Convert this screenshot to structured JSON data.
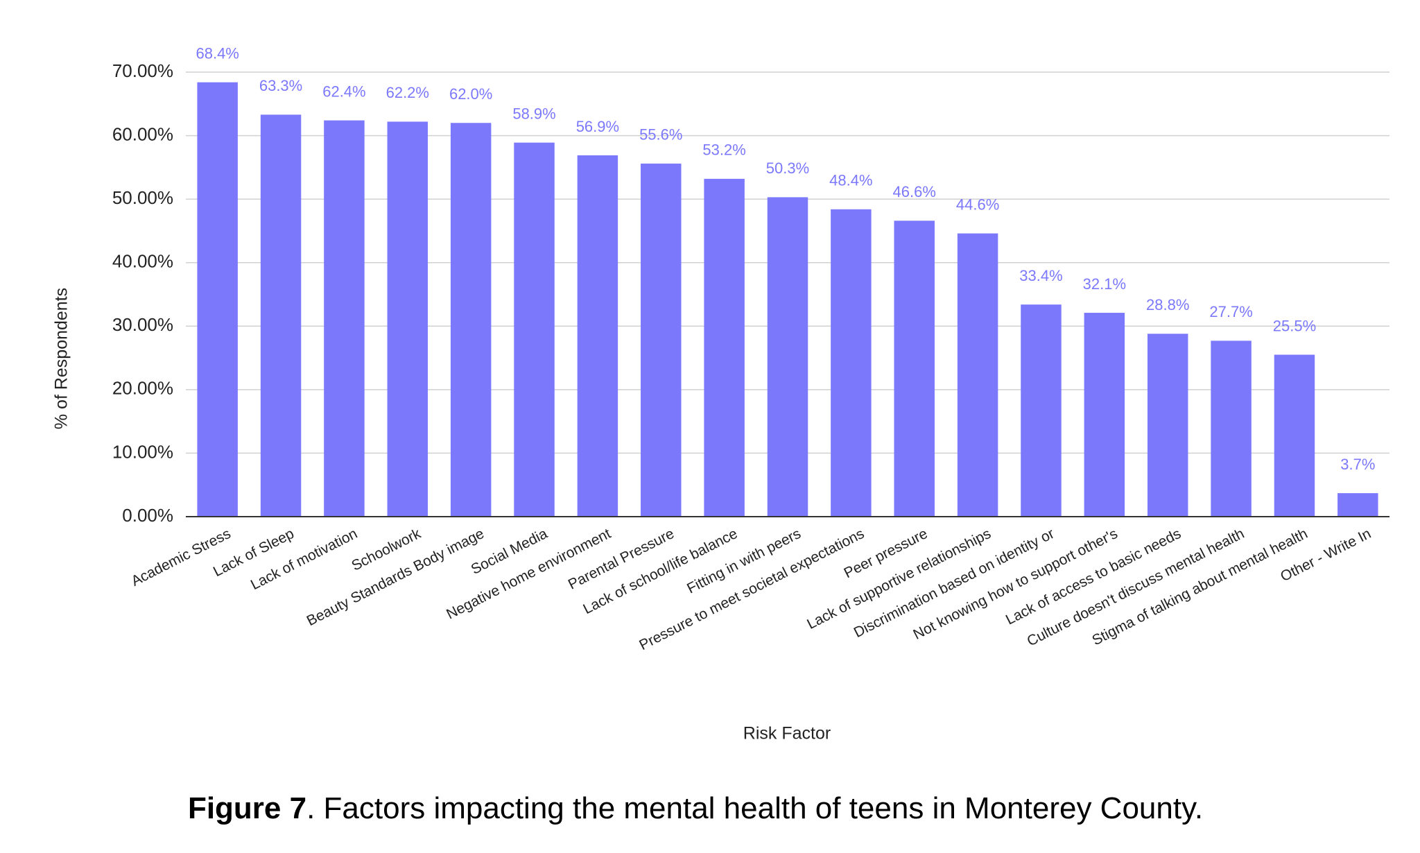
{
  "chart_data": {
    "type": "bar",
    "x_label": "Risk Factor",
    "y_label": "% of Respondents",
    "categories": [
      "Academic Stress",
      "Lack of Sleep",
      "Lack of motivation",
      "Schoolwork",
      "Beauty Standards Body image",
      "Social Media",
      "Negative home environment",
      "Parental Pressure",
      "Lack of school/life balance",
      "Fitting in with peers",
      "Pressure to meet societal expectations",
      "Peer pressure",
      "Lack of supportive relationships",
      "Discrimination based on identity or",
      "Not knowing how to support other's",
      "Lack of access to basic needs",
      "Culture doesn't discuss mental health",
      "Stigma of talking about mental health",
      "Other - Write In"
    ],
    "values": [
      68.4,
      63.3,
      62.4,
      62.2,
      62.0,
      58.9,
      56.9,
      55.6,
      53.2,
      50.3,
      48.4,
      46.6,
      44.6,
      33.4,
      32.1,
      28.8,
      27.7,
      25.5,
      3.7
    ],
    "value_labels": [
      "68.4%",
      "63.3%",
      "62.4%",
      "62.2%",
      "62.0%",
      "58.9%",
      "56.9%",
      "55.6%",
      "53.2%",
      "50.3%",
      "48.4%",
      "46.6%",
      "44.6%",
      "33.4%",
      "32.1%",
      "28.8%",
      "27.7%",
      "25.5%",
      "3.7%"
    ],
    "color": "#7b78fc",
    "ylim": [
      0,
      70
    ],
    "yticks": [
      {
        "value": 0,
        "label": "0.00%"
      },
      {
        "value": 10,
        "label": "10.00%"
      },
      {
        "value": 20,
        "label": "20.00%"
      },
      {
        "value": 30,
        "label": "30.00%"
      },
      {
        "value": 40,
        "label": "40.00%"
      },
      {
        "value": 50,
        "label": "50.00%"
      },
      {
        "value": 60,
        "label": "60.00%"
      },
      {
        "value": 70,
        "label": "70.00%"
      }
    ],
    "grid": true
  },
  "caption": {
    "label": "Figure 7",
    "text": ". Factors impacting the mental health of teens in Monterey County."
  }
}
